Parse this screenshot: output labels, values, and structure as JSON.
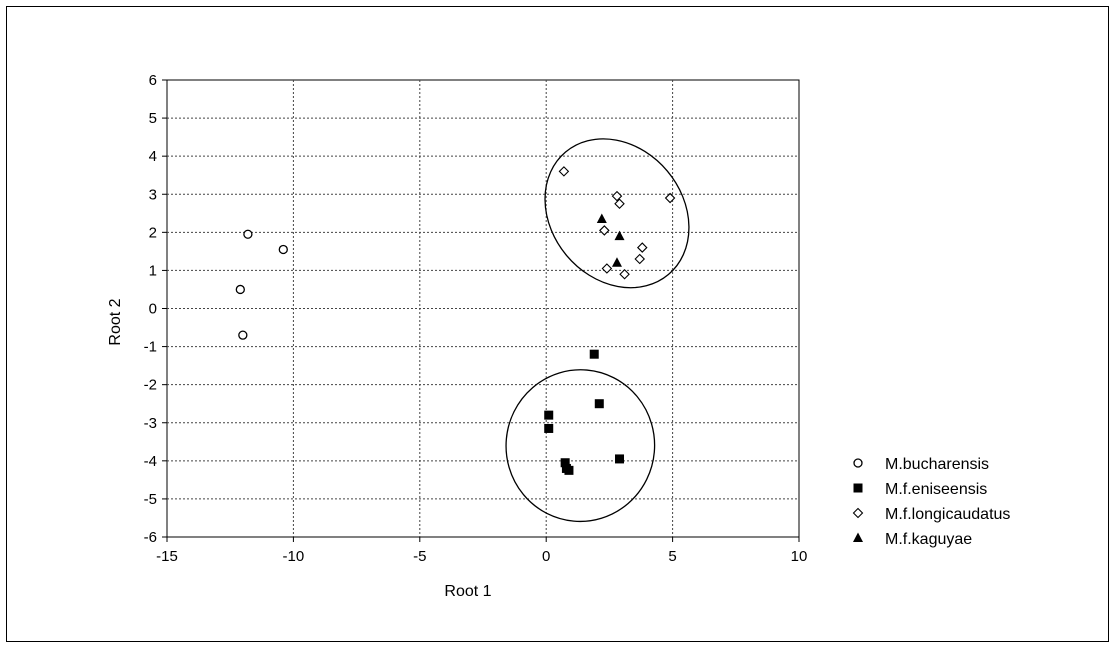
{
  "chart_data": {
    "type": "scatter",
    "xlabel": "Root 1",
    "ylabel": "Root 2",
    "xlim": [
      -15,
      10
    ],
    "ylim": [
      -6,
      6
    ],
    "xticks": [
      -15,
      -10,
      -5,
      0,
      5,
      10
    ],
    "yticks": [
      6,
      5,
      4,
      3,
      2,
      1,
      0,
      -1,
      -2,
      -3,
      -4,
      -5,
      -6
    ],
    "grid": true,
    "legend_position": "right",
    "series": [
      {
        "name": "M.bucharensis",
        "marker": "circle-open",
        "points": [
          [
            -11.8,
            1.95
          ],
          [
            -10.4,
            1.55
          ],
          [
            -12.1,
            0.5
          ],
          [
            -12.0,
            -0.7
          ]
        ]
      },
      {
        "name": "M.f.eniseensis",
        "marker": "square-filled",
        "points": [
          [
            1.9,
            -1.2
          ],
          [
            2.1,
            -2.5
          ],
          [
            0.1,
            -2.8
          ],
          [
            0.1,
            -3.15
          ],
          [
            2.9,
            -3.95
          ],
          [
            0.75,
            -4.05
          ],
          [
            0.8,
            -4.2
          ],
          [
            0.9,
            -4.25
          ]
        ]
      },
      {
        "name": "M.f.longicaudatus",
        "marker": "diamond-open",
        "points": [
          [
            0.7,
            3.6
          ],
          [
            2.8,
            2.95
          ],
          [
            2.9,
            2.75
          ],
          [
            4.9,
            2.9
          ],
          [
            2.3,
            2.05
          ],
          [
            3.8,
            1.6
          ],
          [
            3.7,
            1.3
          ],
          [
            2.4,
            1.05
          ],
          [
            3.1,
            0.9
          ]
        ]
      },
      {
        "name": "M.f.kaguyae",
        "marker": "triangle-filled",
        "points": [
          [
            2.2,
            2.35
          ],
          [
            2.9,
            1.9
          ],
          [
            2.8,
            1.2
          ]
        ]
      }
    ],
    "ellipses": [
      {
        "name": "upper-cluster-ellipse",
        "cx": 2.8,
        "cy": 2.5,
        "rx": 2.6,
        "ry": 2.1,
        "rotation_deg": -40
      },
      {
        "name": "lower-cluster-ellipse",
        "cx": 1.35,
        "cy": -3.6,
        "rx": 3.0,
        "ry": 1.95,
        "rotation_deg": -85
      }
    ]
  }
}
